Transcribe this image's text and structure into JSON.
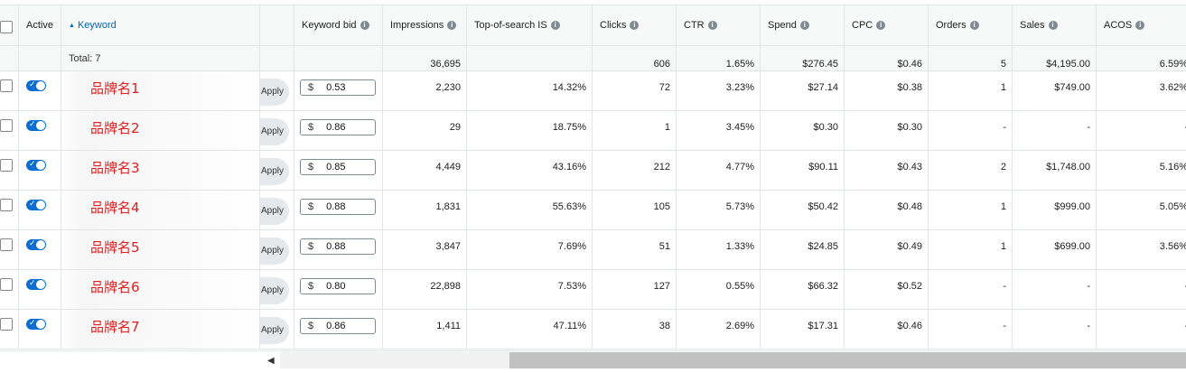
{
  "columns": {
    "active": "Active",
    "keyword": "Keyword",
    "keyword_bid": "Keyword bid",
    "impressions": "Impressions",
    "top_of_search": "Top-of-search IS",
    "clicks": "Clicks",
    "ctr": "CTR",
    "spend": "Spend",
    "cpc": "CPC",
    "orders": "Orders",
    "sales": "Sales",
    "acos": "ACOS"
  },
  "totals": {
    "label": "Total: 7",
    "impressions": "36,695",
    "clicks": "606",
    "ctr": "1.65%",
    "spend": "$276.45",
    "cpc": "$0.46",
    "orders": "5",
    "sales": "$4,195.00",
    "acos": "6.59%"
  },
  "apply_label": "Apply",
  "currency_symbol": "$",
  "rows": [
    {
      "keyword": "品牌名1",
      "bid": "0.53",
      "impressions": "2,230",
      "top_of_search": "14.32%",
      "clicks": "72",
      "ctr": "3.23%",
      "spend": "$27.14",
      "cpc": "$0.38",
      "orders": "1",
      "sales": "$749.00",
      "acos": "3.62%"
    },
    {
      "keyword": "品牌名2",
      "bid": "0.86",
      "impressions": "29",
      "top_of_search": "18.75%",
      "clicks": "1",
      "ctr": "3.45%",
      "spend": "$0.30",
      "cpc": "$0.30",
      "orders": "-",
      "sales": "-",
      "acos": "-"
    },
    {
      "keyword": "品牌名3",
      "bid": "0.85",
      "impressions": "4,449",
      "top_of_search": "43.16%",
      "clicks": "212",
      "ctr": "4.77%",
      "spend": "$90.11",
      "cpc": "$0.43",
      "orders": "2",
      "sales": "$1,748.00",
      "acos": "5.16%"
    },
    {
      "keyword": "品牌名4",
      "bid": "0.88",
      "impressions": "1,831",
      "top_of_search": "55.63%",
      "clicks": "105",
      "ctr": "5.73%",
      "spend": "$50.42",
      "cpc": "$0.48",
      "orders": "1",
      "sales": "$999.00",
      "acos": "5.05%"
    },
    {
      "keyword": "品牌名5",
      "bid": "0.88",
      "impressions": "3,847",
      "top_of_search": "7.69%",
      "clicks": "51",
      "ctr": "1.33%",
      "spend": "$24.85",
      "cpc": "$0.49",
      "orders": "1",
      "sales": "$699.00",
      "acos": "3.56%"
    },
    {
      "keyword": "品牌名6",
      "bid": "0.80",
      "impressions": "22,898",
      "top_of_search": "7.53%",
      "clicks": "127",
      "ctr": "0.55%",
      "spend": "$66.32",
      "cpc": "$0.52",
      "orders": "-",
      "sales": "-",
      "acos": "-"
    },
    {
      "keyword": "品牌名7",
      "bid": "0.86",
      "impressions": "1,411",
      "top_of_search": "47.11%",
      "clicks": "38",
      "ctr": "2.69%",
      "spend": "$17.31",
      "cpc": "$0.46",
      "orders": "-",
      "sales": "-",
      "acos": "-"
    }
  ],
  "colors": {
    "header_bg": "#f7f8f8",
    "toggle_on": "#0a6ed1",
    "keyword_text": "#e02020",
    "sort_link": "#0066c0"
  }
}
